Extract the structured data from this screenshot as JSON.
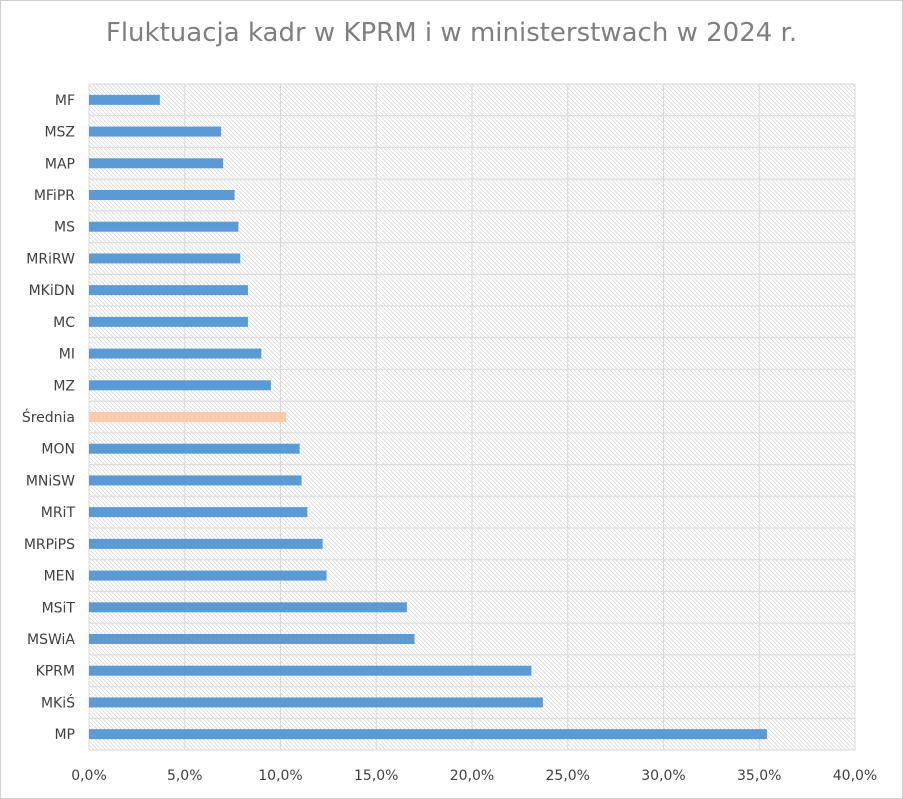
{
  "chart_data": {
    "type": "bar",
    "orientation": "horizontal",
    "title": "Fluktuacja kadr w KPRM i w ministerstwach w 2024 r.",
    "categories": [
      "MF",
      "MSZ",
      "MAP",
      "MFiPR",
      "MS",
      "MRiRW",
      "MKiDN",
      "MC",
      "MI",
      "MZ",
      "Średnia",
      "MON",
      "MNiSW",
      "MRiT",
      "MRPiPS",
      "MEN",
      "MSiT",
      "MSWiA",
      "KPRM",
      "MKiŚ",
      "MP"
    ],
    "values": [
      3.7,
      6.9,
      7.0,
      7.6,
      7.8,
      7.9,
      8.3,
      8.3,
      9.0,
      9.5,
      10.3,
      11.0,
      11.1,
      11.4,
      12.2,
      12.4,
      16.6,
      17.0,
      23.1,
      23.7,
      35.4
    ],
    "highlight_category": "Średnia",
    "bar_color": "#5b9bd5",
    "highlight_color": "#f8cbad",
    "xlim": [
      0,
      40
    ],
    "xticks": [
      0,
      5,
      10,
      15,
      20,
      25,
      30,
      35,
      40
    ],
    "xtick_labels": [
      "0,0%",
      "5,0%",
      "10,0%",
      "15,0%",
      "20,0%",
      "25,0%",
      "30,0%",
      "35,0%",
      "40,0%"
    ],
    "grid": true,
    "legend": "none"
  }
}
